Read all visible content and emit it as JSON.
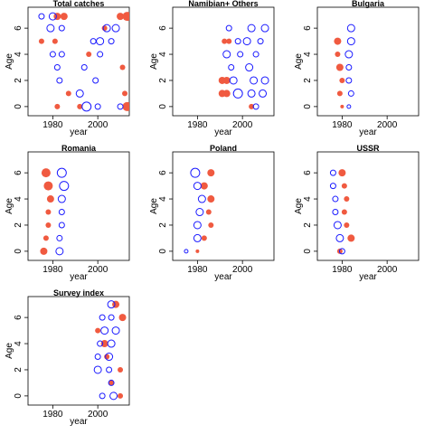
{
  "chart_data": [
    {
      "type": "scatter",
      "title": "Total catches",
      "xlabel": "year",
      "ylabel": "Age",
      "xlim": [
        1969,
        2014
      ],
      "ylim": [
        -0.7,
        7.6
      ],
      "xticks": [
        1980,
        2000
      ],
      "yticks": [
        0,
        2,
        4,
        6
      ],
      "series": [
        {
          "color": "#f05a40",
          "fill": true,
          "points": [
            [
              1982,
              6.9,
              4
            ],
            [
              1985,
              6.9,
              4
            ],
            [
              2010,
              6.9,
              4
            ],
            [
              2013,
              6.9,
              5
            ],
            [
              2003,
              6.0,
              3
            ],
            [
              1975,
              5.0,
              3
            ],
            [
              1981,
              5.0,
              3
            ],
            [
              1996,
              4.0,
              3
            ],
            [
              2011,
              3.0,
              3
            ],
            [
              1987,
              1.0,
              3
            ],
            [
              2012,
              1.0,
              3
            ],
            [
              2013,
              0.0,
              5
            ],
            [
              1982,
              0.0,
              3
            ],
            [
              1992,
              0.0,
              3
            ]
          ]
        },
        {
          "color": "#1a1aff",
          "fill": false,
          "points": [
            [
              1975,
              6.9,
              3
            ],
            [
              1980,
              6.9,
              4
            ],
            [
              2004,
              6.0,
              4
            ],
            [
              2008,
              6.0,
              4
            ],
            [
              1979,
              6.0,
              4
            ],
            [
              1984,
              6.0,
              3
            ],
            [
              1998,
              5.0,
              3
            ],
            [
              2001,
              5.0,
              4
            ],
            [
              2006,
              5.0,
              3
            ],
            [
              1980,
              4.0,
              3
            ],
            [
              1984,
              4.0,
              3
            ],
            [
              2001,
              4.0,
              3
            ],
            [
              1982,
              3.0,
              3
            ],
            [
              1994,
              3.0,
              3
            ],
            [
              1983,
              2.0,
              3
            ],
            [
              1999,
              2.0,
              3
            ],
            [
              1992,
              1.0,
              4
            ],
            [
              1995,
              0.0,
              5
            ],
            [
              2000,
              0.0,
              3
            ],
            [
              2010,
              0.0,
              3
            ]
          ]
        }
      ]
    },
    {
      "type": "scatter",
      "title": "Namibian+ Others",
      "xlabel": "year",
      "ylabel": "Age",
      "xlim": [
        1969,
        2014
      ],
      "ylim": [
        -0.7,
        7.6
      ],
      "xticks": [
        1980,
        2000
      ],
      "yticks": [
        0,
        2,
        4,
        6
      ],
      "series": [
        {
          "color": "#f05a40",
          "fill": true,
          "points": [
            [
              1992,
              5.0,
              3
            ],
            [
              1994,
              5.0,
              3
            ],
            [
              1991,
              2.0,
              4
            ],
            [
              1993,
              2.0,
              4
            ],
            [
              1991,
              1.0,
              4
            ],
            [
              1993,
              1.0,
              4
            ],
            [
              2004,
              0.0,
              3
            ]
          ]
        },
        {
          "color": "#1a1aff",
          "fill": false,
          "points": [
            [
              1994,
              6.0,
              3
            ],
            [
              2004,
              6.0,
              4
            ],
            [
              2010,
              6.0,
              4
            ],
            [
              1998,
              5.0,
              3
            ],
            [
              2002,
              5.0,
              4
            ],
            [
              2008,
              5.0,
              3
            ],
            [
              1993,
              4.0,
              4
            ],
            [
              1999,
              4.0,
              3
            ],
            [
              2006,
              4.0,
              3
            ],
            [
              1995,
              3.0,
              3
            ],
            [
              2003,
              3.0,
              4
            ],
            [
              1996,
              2.0,
              4
            ],
            [
              2005,
              2.0,
              4
            ],
            [
              2010,
              2.0,
              4
            ],
            [
              1998,
              1.0,
              5
            ],
            [
              2004,
              1.0,
              4
            ],
            [
              2009,
              1.0,
              4
            ],
            [
              2006,
              0.0,
              3
            ]
          ]
        }
      ]
    },
    {
      "type": "scatter",
      "title": "Bulgaria",
      "xlabel": "year",
      "ylabel": "Age",
      "xlim": [
        1969,
        2014
      ],
      "ylim": [
        -0.7,
        7.6
      ],
      "xticks": [
        1980,
        2000
      ],
      "yticks": [
        0,
        2,
        4,
        6
      ],
      "series": [
        {
          "color": "#f05a40",
          "fill": true,
          "points": [
            [
              1978,
              5.0,
              4
            ],
            [
              1978,
              4.0,
              3
            ],
            [
              1979,
              3.0,
              4
            ],
            [
              1980,
              2.0,
              3
            ],
            [
              1979,
              1.0,
              3
            ],
            [
              1980,
              0.0,
              2
            ]
          ]
        },
        {
          "color": "#1a1aff",
          "fill": false,
          "points": [
            [
              1984,
              6.0,
              4
            ],
            [
              1984,
              5.0,
              4
            ],
            [
              1983,
              4.0,
              4
            ],
            [
              1983,
              3.0,
              3
            ],
            [
              1983,
              2.0,
              3
            ],
            [
              1984,
              1.0,
              3
            ],
            [
              1983,
              0.0,
              2
            ]
          ]
        }
      ]
    },
    {
      "type": "scatter",
      "title": "Romania",
      "xlabel": "year",
      "ylabel": "Age",
      "xlim": [
        1969,
        2014
      ],
      "ylim": [
        -0.7,
        7.6
      ],
      "xticks": [
        1980,
        2000
      ],
      "yticks": [
        0,
        2,
        4,
        6
      ],
      "series": [
        {
          "color": "#f05a40",
          "fill": true,
          "points": [
            [
              1977,
              6.0,
              5
            ],
            [
              1978,
              5.0,
              5
            ],
            [
              1979,
              4.0,
              4
            ],
            [
              1978,
              3.0,
              3
            ],
            [
              1978,
              2.0,
              3
            ],
            [
              1977,
              1.0,
              3
            ],
            [
              1976,
              0.0,
              4
            ]
          ]
        },
        {
          "color": "#1a1aff",
          "fill": false,
          "points": [
            [
              1984,
              6.0,
              5
            ],
            [
              1985,
              5.0,
              5
            ],
            [
              1984,
              4.0,
              4
            ],
            [
              1984,
              3.0,
              3
            ],
            [
              1984,
              2.0,
              3
            ],
            [
              1983,
              1.0,
              3
            ],
            [
              1983,
              0.0,
              4
            ]
          ]
        }
      ]
    },
    {
      "type": "scatter",
      "title": "Poland",
      "xlabel": "year",
      "ylabel": "Age",
      "xlim": [
        1969,
        2014
      ],
      "ylim": [
        -0.7,
        7.6
      ],
      "xticks": [
        1980,
        2000
      ],
      "yticks": [
        0,
        2,
        4,
        6
      ],
      "series": [
        {
          "color": "#f05a40",
          "fill": true,
          "points": [
            [
              1986,
              6.0,
              4
            ],
            [
              1983,
              5.0,
              4
            ],
            [
              1986,
              4.0,
              4
            ],
            [
              1985,
              3.0,
              3
            ],
            [
              1986,
              2.0,
              3
            ],
            [
              1983,
              1.0,
              3
            ],
            [
              1980,
              0.0,
              2
            ]
          ]
        },
        {
          "color": "#1a1aff",
          "fill": false,
          "points": [
            [
              1979,
              6.0,
              5
            ],
            [
              1980,
              5.0,
              4
            ],
            [
              1982,
              4.0,
              4
            ],
            [
              1981,
              3.0,
              4
            ],
            [
              1980,
              2.0,
              4
            ],
            [
              1980,
              1.0,
              4
            ],
            [
              1975,
              0.0,
              2
            ]
          ]
        }
      ]
    },
    {
      "type": "scatter",
      "title": "USSR",
      "xlabel": "year",
      "ylabel": "Age",
      "xlim": [
        1969,
        2014
      ],
      "ylim": [
        -0.7,
        7.6
      ],
      "xticks": [
        1980,
        2000
      ],
      "yticks": [
        0,
        2,
        4,
        6
      ],
      "series": [
        {
          "color": "#f05a40",
          "fill": true,
          "points": [
            [
              1980,
              6.0,
              4
            ],
            [
              1981,
              5.0,
              3
            ],
            [
              1982,
              4.0,
              3
            ],
            [
              1981,
              3.0,
              3
            ],
            [
              1982,
              2.0,
              3
            ],
            [
              1984,
              1.0,
              4
            ],
            [
              1979,
              0.0,
              3
            ]
          ]
        },
        {
          "color": "#1a1aff",
          "fill": false,
          "points": [
            [
              1976,
              6.0,
              3
            ],
            [
              1976,
              5.0,
              3
            ],
            [
              1977,
              4.0,
              3
            ],
            [
              1977,
              3.0,
              3
            ],
            [
              1978,
              2.0,
              4
            ],
            [
              1979,
              1.0,
              4
            ],
            [
              1980,
              0.0,
              3
            ]
          ]
        }
      ]
    },
    {
      "type": "scatter",
      "title": "Survey index",
      "xlabel": "year",
      "ylabel": "Age",
      "xlim": [
        1969,
        2014
      ],
      "ylim": [
        -0.7,
        7.6
      ],
      "xticks": [
        1980,
        2000
      ],
      "yticks": [
        0,
        2,
        4,
        6
      ],
      "series": [
        {
          "color": "#f05a40",
          "fill": true,
          "points": [
            [
              2008,
              7.0,
              4
            ],
            [
              2011,
              6.0,
              4
            ],
            [
              2000,
              5.0,
              3
            ],
            [
              2003,
              4.0,
              4
            ],
            [
              2004,
              3.0,
              3
            ],
            [
              2010,
              2.0,
              3
            ],
            [
              2006,
              1.0,
              3
            ],
            [
              2010,
              0.0,
              3
            ]
          ]
        },
        {
          "color": "#1a1aff",
          "fill": false,
          "points": [
            [
              2006,
              7.0,
              4
            ],
            [
              2002,
              6.0,
              3
            ],
            [
              2006,
              6.0,
              3
            ],
            [
              2003,
              5.0,
              4
            ],
            [
              2008,
              5.0,
              4
            ],
            [
              2001,
              4.0,
              3
            ],
            [
              2006,
              4.0,
              4
            ],
            [
              2000,
              3.0,
              3
            ],
            [
              2005,
              3.0,
              4
            ],
            [
              2000,
              2.0,
              4
            ],
            [
              2005,
              2.0,
              3
            ],
            [
              2006,
              1.0,
              3
            ],
            [
              2002,
              0.0,
              3
            ],
            [
              2007,
              0.0,
              4
            ]
          ]
        }
      ]
    }
  ]
}
